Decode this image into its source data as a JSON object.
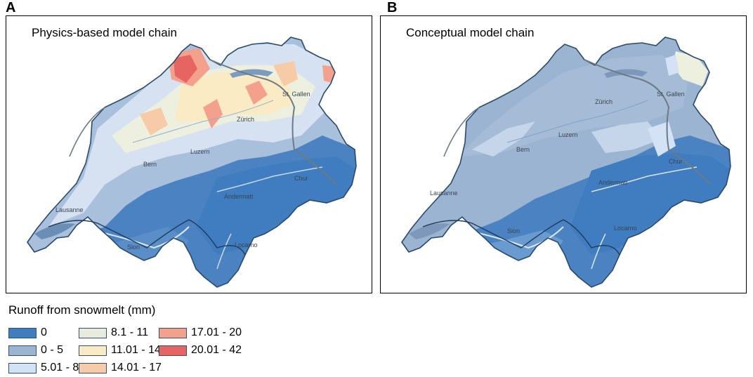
{
  "panels": [
    {
      "letter": "A",
      "title": "Physics-based model chain"
    },
    {
      "letter": "B",
      "title": "Conceptual model chain"
    }
  ],
  "cities": [
    "St. Gallen",
    "Zürich",
    "Luzern",
    "Bern",
    "Chur",
    "Andermatt",
    "Lausanne",
    "Sion",
    "Locarno"
  ],
  "legend": {
    "title": "Runoff from snowmelt (mm)",
    "classes": [
      {
        "label": "0",
        "color": "#3f7dc0"
      },
      {
        "label": "0 - 5",
        "color": "#9bb4d1"
      },
      {
        "label": "5.01 - 8",
        "color": "#d3e2f5"
      },
      {
        "label": "8.1 - 11",
        "color": "#e9ecdc"
      },
      {
        "label": "11.01 - 14",
        "color": "#fbebc5"
      },
      {
        "label": "14.01 - 17",
        "color": "#f8cba8"
      },
      {
        "label": "17.01 - 20",
        "color": "#f3a18d"
      },
      {
        "label": "20.01 - 42",
        "color": "#e66462"
      }
    ]
  }
}
